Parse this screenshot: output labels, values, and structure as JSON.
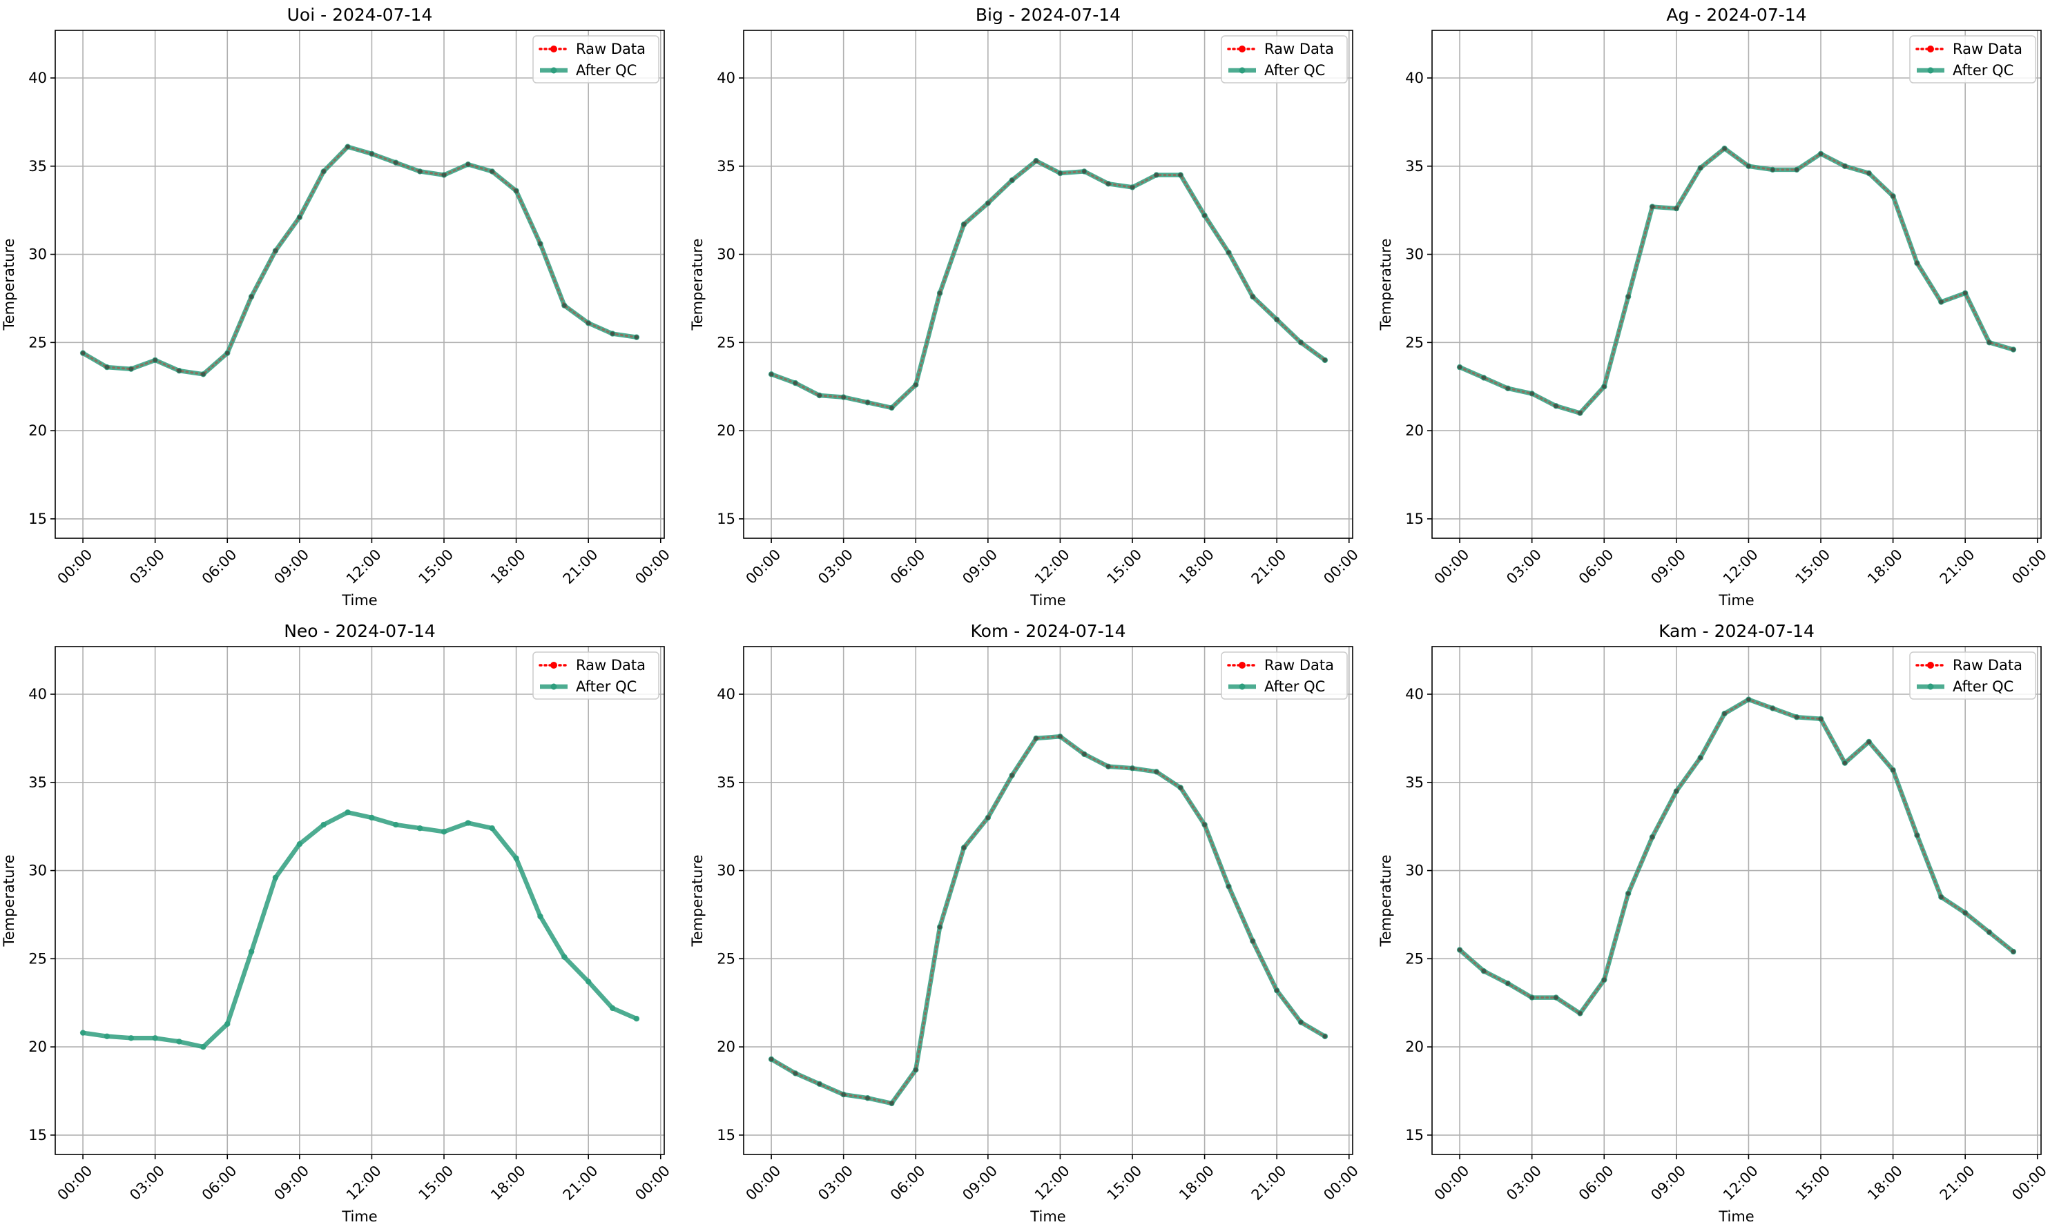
{
  "figure": {
    "legend_labels": [
      "Raw Data",
      "After QC"
    ],
    "colors": {
      "raw": "#ff0000",
      "qc": "#2e9e7e",
      "grid": "#b0b0b0",
      "axis": "#000000"
    }
  },
  "chart_data": [
    {
      "type": "line",
      "title": "Uoi - 2024-07-14",
      "xlabel": "Time",
      "ylabel": "Temperature",
      "xlim": [
        -1.15,
        24.15
      ],
      "ylim": [
        13.9,
        42.7
      ],
      "x_ticks": [
        0,
        3,
        6,
        9,
        12,
        15,
        18,
        21,
        24
      ],
      "x_tick_labels": [
        "00:00",
        "03:00",
        "06:00",
        "09:00",
        "12:00",
        "15:00",
        "18:00",
        "21:00",
        "00:00"
      ],
      "y_ticks": [
        15,
        20,
        25,
        30,
        35,
        40
      ],
      "y_tick_labels": [
        "15",
        "20",
        "25",
        "30",
        "35",
        "40"
      ],
      "grid": true,
      "legend": "top-right",
      "x_hours": [
        0,
        1,
        2,
        3,
        4,
        5,
        6,
        7,
        8,
        9,
        10,
        11,
        12,
        13,
        14,
        15,
        16,
        17,
        18,
        19,
        20,
        21,
        22,
        23
      ],
      "series": [
        {
          "name": "Raw Data",
          "values": [
            24.4,
            23.6,
            23.5,
            24.0,
            23.4,
            23.2,
            24.4,
            27.6,
            30.2,
            32.1,
            34.7,
            36.1,
            35.7,
            35.2,
            34.7,
            34.5,
            35.1,
            34.7,
            33.6,
            30.6,
            27.1,
            26.1,
            25.5,
            25.3
          ]
        },
        {
          "name": "After QC",
          "values": [
            24.4,
            23.6,
            23.5,
            24.0,
            23.4,
            23.2,
            24.4,
            27.6,
            30.2,
            32.1,
            34.7,
            36.1,
            35.7,
            35.2,
            34.7,
            34.5,
            35.1,
            34.7,
            33.6,
            30.6,
            27.1,
            26.1,
            25.5,
            25.3
          ]
        }
      ]
    },
    {
      "type": "line",
      "title": "Big - 2024-07-14",
      "xlabel": "Time",
      "ylabel": "Temperature",
      "xlim": [
        -1.15,
        24.15
      ],
      "ylim": [
        13.9,
        42.7
      ],
      "x_ticks": [
        0,
        3,
        6,
        9,
        12,
        15,
        18,
        21,
        24
      ],
      "x_tick_labels": [
        "00:00",
        "03:00",
        "06:00",
        "09:00",
        "12:00",
        "15:00",
        "18:00",
        "21:00",
        "00:00"
      ],
      "y_ticks": [
        15,
        20,
        25,
        30,
        35,
        40
      ],
      "y_tick_labels": [
        "15",
        "20",
        "25",
        "30",
        "35",
        "40"
      ],
      "grid": true,
      "legend": "top-right",
      "x_hours": [
        0,
        1,
        2,
        3,
        4,
        5,
        6,
        7,
        8,
        9,
        10,
        11,
        12,
        13,
        14,
        15,
        16,
        17,
        18,
        19,
        20,
        21,
        22,
        23
      ],
      "series": [
        {
          "name": "Raw Data",
          "values": [
            23.2,
            22.7,
            22.0,
            21.9,
            21.6,
            21.3,
            22.6,
            27.8,
            31.7,
            32.9,
            34.2,
            35.3,
            34.6,
            34.7,
            34.0,
            33.8,
            34.5,
            34.5,
            32.2,
            30.1,
            27.6,
            26.3,
            25.0,
            24.0
          ]
        },
        {
          "name": "After QC",
          "values": [
            23.2,
            22.7,
            22.0,
            21.9,
            21.6,
            21.3,
            22.6,
            27.8,
            31.7,
            32.9,
            34.2,
            35.3,
            34.6,
            34.7,
            34.0,
            33.8,
            34.5,
            34.5,
            32.2,
            30.1,
            27.6,
            26.3,
            25.0,
            24.0
          ]
        }
      ]
    },
    {
      "type": "line",
      "title": "Ag - 2024-07-14",
      "xlabel": "Time",
      "ylabel": "Temperature",
      "xlim": [
        -1.15,
        24.15
      ],
      "ylim": [
        13.9,
        42.7
      ],
      "x_ticks": [
        0,
        3,
        6,
        9,
        12,
        15,
        18,
        21,
        24
      ],
      "x_tick_labels": [
        "00:00",
        "03:00",
        "06:00",
        "09:00",
        "12:00",
        "15:00",
        "18:00",
        "21:00",
        "00:00"
      ],
      "y_ticks": [
        15,
        20,
        25,
        30,
        35,
        40
      ],
      "y_tick_labels": [
        "15",
        "20",
        "25",
        "30",
        "35",
        "40"
      ],
      "grid": true,
      "legend": "top-right",
      "x_hours": [
        0,
        1,
        2,
        3,
        4,
        5,
        6,
        7,
        8,
        9,
        10,
        11,
        12,
        13,
        14,
        15,
        16,
        17,
        18,
        19,
        20,
        21,
        22,
        23
      ],
      "series": [
        {
          "name": "Raw Data",
          "values": [
            23.6,
            23.0,
            22.4,
            22.1,
            21.4,
            21.0,
            22.5,
            27.6,
            32.7,
            32.6,
            34.9,
            36.0,
            35.0,
            34.8,
            34.8,
            35.7,
            35.0,
            34.6,
            33.3,
            29.5,
            27.3,
            27.8,
            25.0,
            24.6
          ]
        },
        {
          "name": "After QC",
          "values": [
            23.6,
            23.0,
            22.4,
            22.1,
            21.4,
            21.0,
            22.5,
            27.6,
            32.7,
            32.6,
            34.9,
            36.0,
            35.0,
            34.8,
            34.8,
            35.7,
            35.0,
            34.6,
            33.3,
            29.5,
            27.3,
            27.8,
            25.0,
            24.6
          ]
        }
      ]
    },
    {
      "type": "line",
      "title": "Neo - 2024-07-14",
      "xlabel": "Time",
      "ylabel": "Temperature",
      "xlim": [
        -1.15,
        24.15
      ],
      "ylim": [
        13.9,
        42.7
      ],
      "x_ticks": [
        0,
        3,
        6,
        9,
        12,
        15,
        18,
        21,
        24
      ],
      "x_tick_labels": [
        "00:00",
        "03:00",
        "06:00",
        "09:00",
        "12:00",
        "15:00",
        "18:00",
        "21:00",
        "00:00"
      ],
      "y_ticks": [
        15,
        20,
        25,
        30,
        35,
        40
      ],
      "y_tick_labels": [
        "15",
        "20",
        "25",
        "30",
        "35",
        "40"
      ],
      "grid": true,
      "legend": "top-right",
      "x_hours": [
        0,
        1,
        2,
        3,
        4,
        5,
        6,
        7,
        8,
        9,
        10,
        11,
        12,
        13,
        14,
        15,
        16,
        17,
        18,
        19,
        20,
        21,
        22,
        23
      ],
      "series": [
        {
          "name": "Raw Data",
          "values": []
        },
        {
          "name": "After QC",
          "values": [
            20.8,
            20.6,
            20.5,
            20.5,
            20.3,
            20.0,
            21.3,
            25.4,
            29.6,
            31.5,
            32.6,
            33.3,
            33.0,
            32.6,
            32.4,
            32.2,
            32.7,
            32.4,
            30.7,
            27.4,
            25.1,
            23.7,
            22.2,
            21.6
          ]
        }
      ]
    },
    {
      "type": "line",
      "title": "Kom - 2024-07-14",
      "xlabel": "Time",
      "ylabel": "Temperature",
      "xlim": [
        -1.15,
        24.15
      ],
      "ylim": [
        13.9,
        42.7
      ],
      "x_ticks": [
        0,
        3,
        6,
        9,
        12,
        15,
        18,
        21,
        24
      ],
      "x_tick_labels": [
        "00:00",
        "03:00",
        "06:00",
        "09:00",
        "12:00",
        "15:00",
        "18:00",
        "21:00",
        "00:00"
      ],
      "y_ticks": [
        15,
        20,
        25,
        30,
        35,
        40
      ],
      "y_tick_labels": [
        "15",
        "20",
        "25",
        "30",
        "35",
        "40"
      ],
      "grid": true,
      "legend": "top-right",
      "x_hours": [
        0,
        1,
        2,
        3,
        4,
        5,
        6,
        7,
        8,
        9,
        10,
        11,
        12,
        13,
        14,
        15,
        16,
        17,
        18,
        19,
        20,
        21,
        22,
        23
      ],
      "series": [
        {
          "name": "Raw Data",
          "values": [
            19.3,
            18.5,
            17.9,
            17.3,
            17.1,
            16.8,
            18.7,
            26.8,
            31.3,
            33.0,
            35.4,
            37.5,
            37.6,
            36.6,
            35.9,
            35.8,
            35.6,
            34.7,
            32.6,
            29.1,
            26.0,
            23.2,
            21.4,
            20.6
          ]
        },
        {
          "name": "After QC",
          "values": [
            19.3,
            18.5,
            17.9,
            17.3,
            17.1,
            16.8,
            18.7,
            26.8,
            31.3,
            33.0,
            35.4,
            37.5,
            37.6,
            36.6,
            35.9,
            35.8,
            35.6,
            34.7,
            32.6,
            29.1,
            26.0,
            23.2,
            21.4,
            20.6
          ]
        }
      ]
    },
    {
      "type": "line",
      "title": "Kam - 2024-07-14",
      "xlabel": "Time",
      "ylabel": "Temperature",
      "xlim": [
        -1.15,
        24.15
      ],
      "ylim": [
        13.9,
        42.7
      ],
      "x_ticks": [
        0,
        3,
        6,
        9,
        12,
        15,
        18,
        21,
        24
      ],
      "x_tick_labels": [
        "00:00",
        "03:00",
        "06:00",
        "09:00",
        "12:00",
        "15:00",
        "18:00",
        "21:00",
        "00:00"
      ],
      "y_ticks": [
        15,
        20,
        25,
        30,
        35,
        40
      ],
      "y_tick_labels": [
        "15",
        "20",
        "25",
        "30",
        "35",
        "40"
      ],
      "grid": true,
      "legend": "top-right",
      "x_hours": [
        0,
        1,
        2,
        3,
        4,
        5,
        6,
        7,
        8,
        9,
        10,
        11,
        12,
        13,
        14,
        15,
        16,
        17,
        18,
        19,
        20,
        21,
        22,
        23
      ],
      "series": [
        {
          "name": "Raw Data",
          "values": [
            25.5,
            24.3,
            23.6,
            22.8,
            22.8,
            21.9,
            23.8,
            28.7,
            31.9,
            34.5,
            36.4,
            38.9,
            39.7,
            39.2,
            38.7,
            38.6,
            36.1,
            37.3,
            35.7,
            32.0,
            28.5,
            27.6,
            26.5,
            25.4
          ]
        },
        {
          "name": "After QC",
          "values": [
            25.5,
            24.3,
            23.6,
            22.8,
            22.8,
            21.9,
            23.8,
            28.7,
            31.9,
            34.5,
            36.4,
            38.9,
            39.7,
            39.2,
            38.7,
            38.6,
            36.1,
            37.3,
            35.7,
            32.0,
            28.5,
            27.6,
            26.5,
            25.4
          ]
        }
      ]
    }
  ]
}
